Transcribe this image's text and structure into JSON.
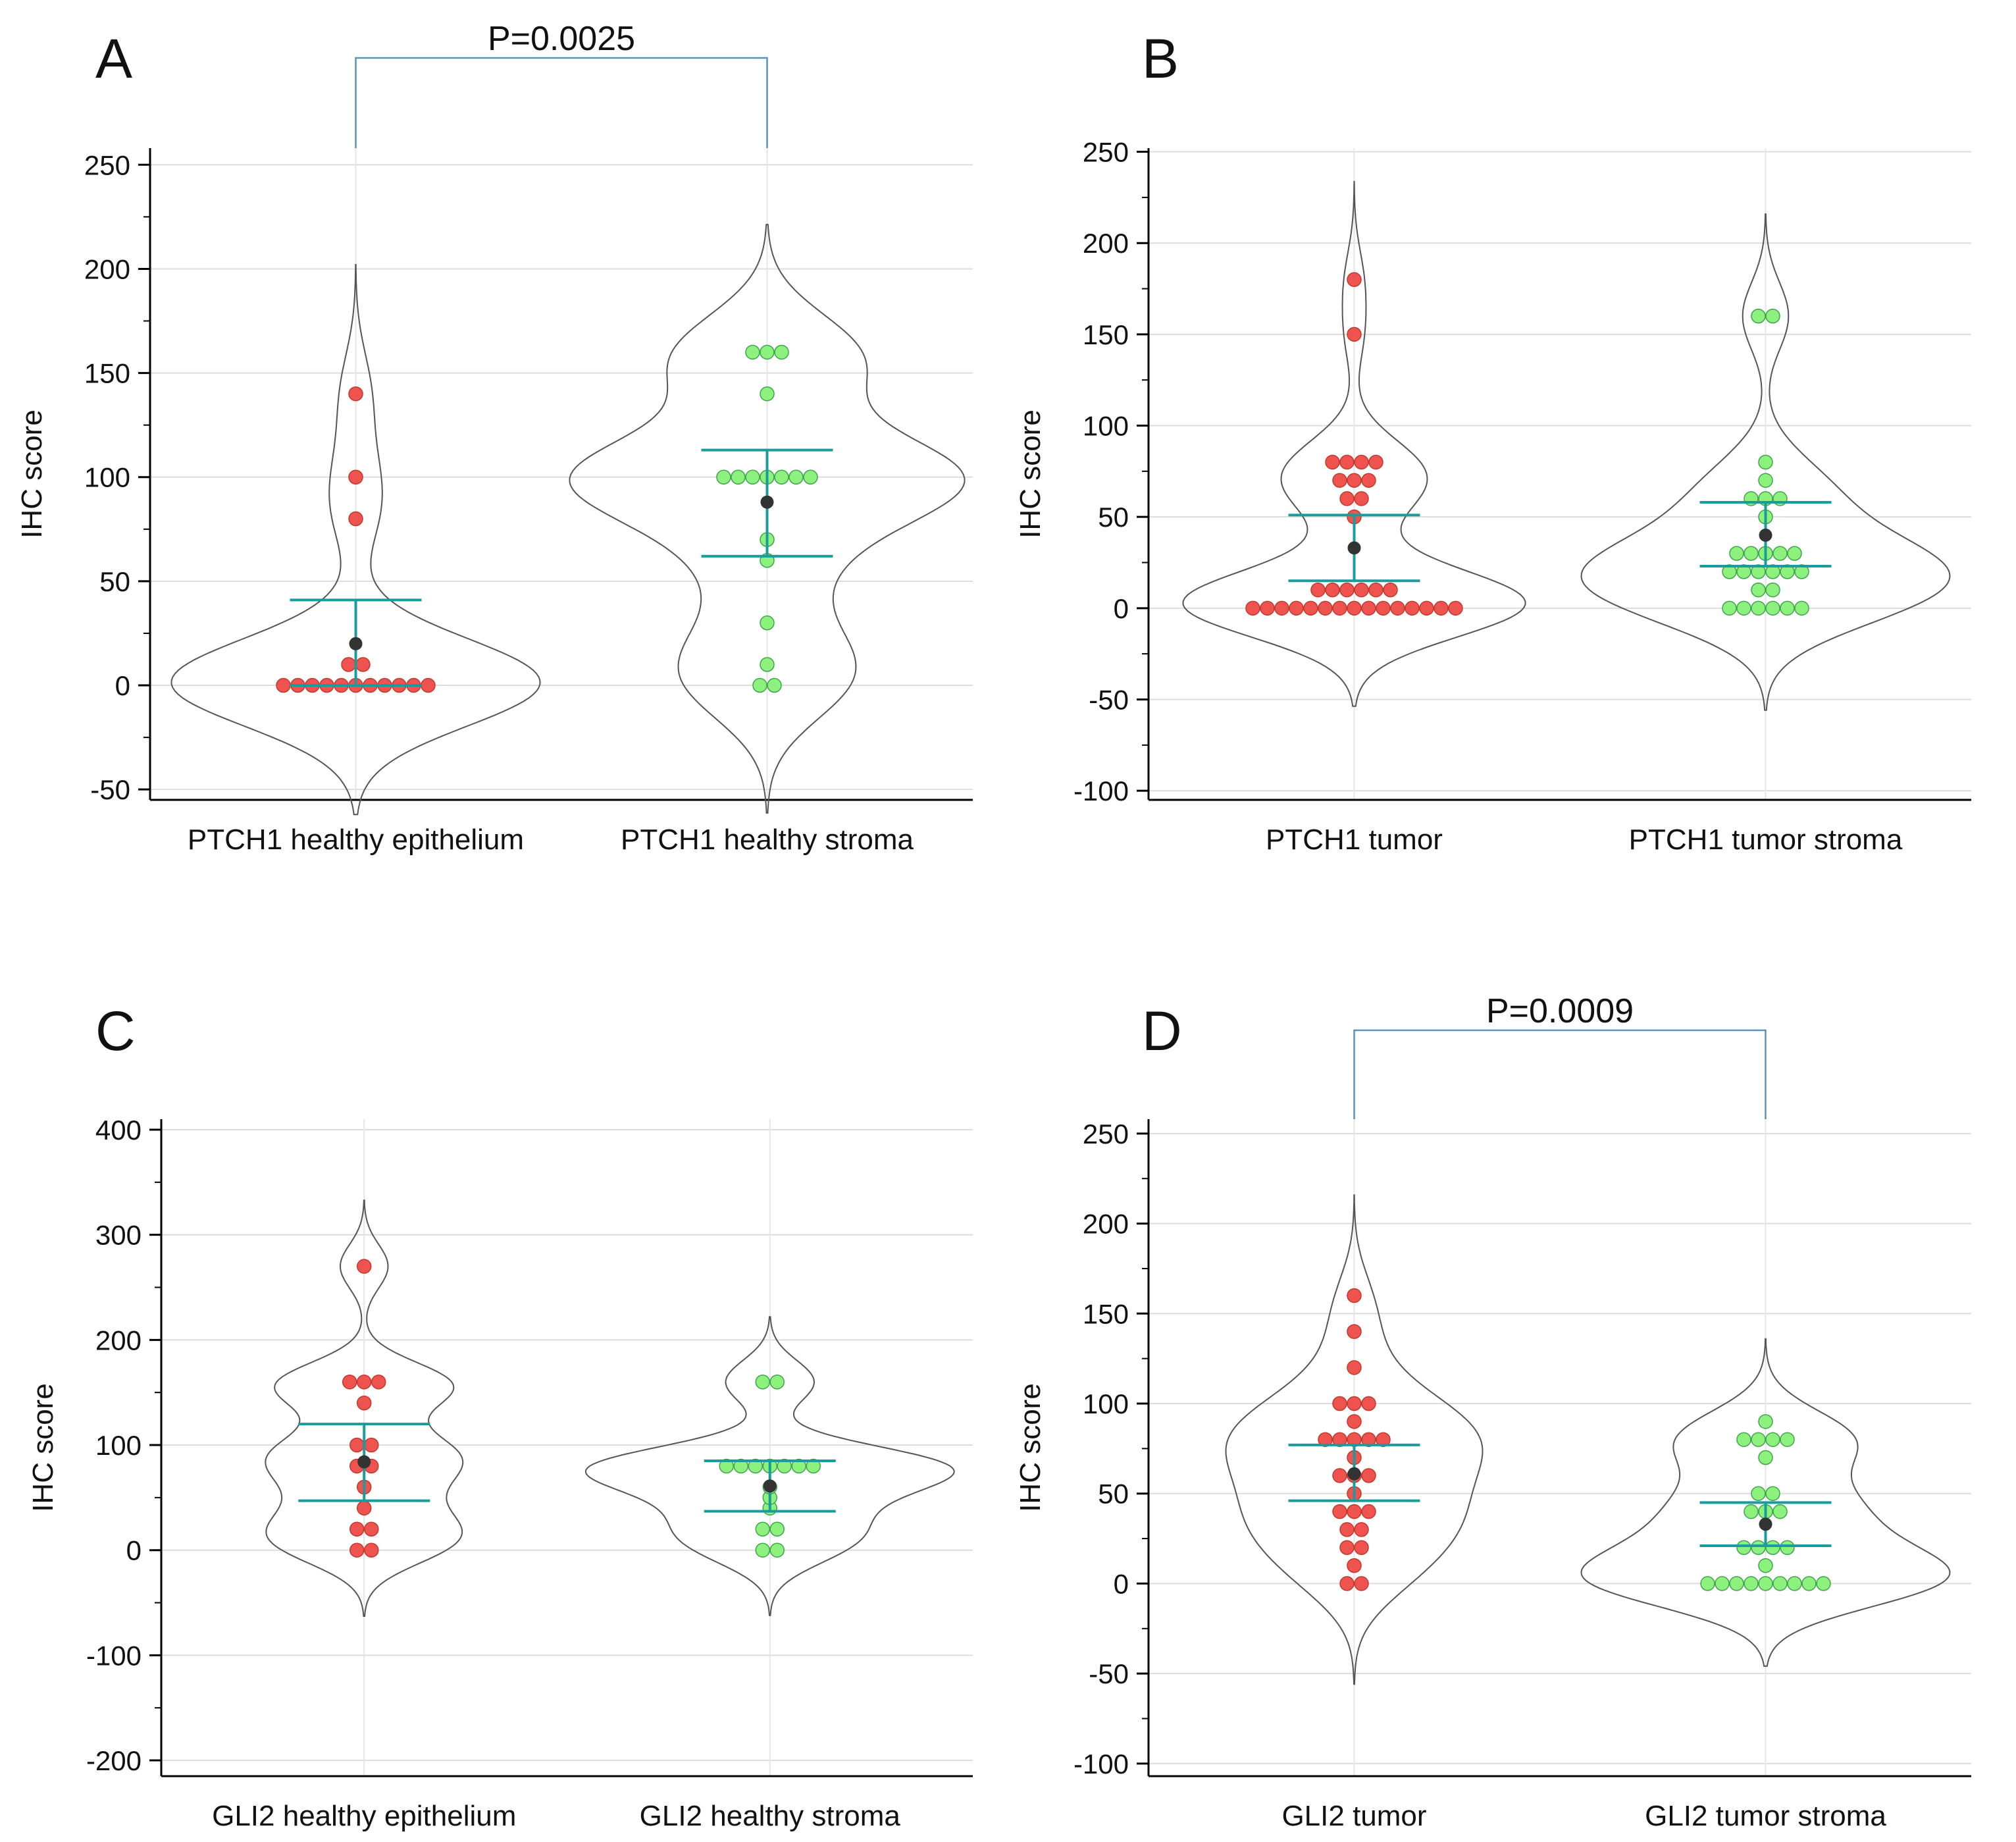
{
  "figure": {
    "ylabel": "IHC score",
    "colors": {
      "red": "#ef5350",
      "green": "#8cf27d",
      "teal": "#1a9c9c",
      "mean": "#333333",
      "violin": "#555555",
      "grid": "#dddddd",
      "sig": "#5a93b8"
    }
  },
  "chart_data": [
    {
      "type": "violin",
      "panel": "A",
      "ylabel": "IHC score",
      "ylim": [
        -55,
        258
      ],
      "yticks": [
        -50,
        0,
        50,
        100,
        150,
        200,
        250
      ],
      "categories": [
        "PTCH1 healthy epithelium",
        "PTCH1 healthy stroma"
      ],
      "significance": "P=0.0025",
      "series": [
        {
          "name": "PTCH1 healthy epithelium",
          "color": "red",
          "points": [
            140,
            100,
            80,
            10,
            10,
            0,
            0,
            0,
            0,
            0,
            0,
            0,
            0,
            0,
            0,
            0
          ],
          "mean": 20,
          "ci_low": 0,
          "ci_high": 41
        },
        {
          "name": "PTCH1 healthy stroma",
          "color": "green",
          "points": [
            160,
            160,
            160,
            140,
            100,
            100,
            100,
            100,
            100,
            100,
            100,
            70,
            60,
            30,
            10,
            0,
            0
          ],
          "mean": 88,
          "ci_low": 62,
          "ci_high": 113
        }
      ]
    },
    {
      "type": "violin",
      "panel": "B",
      "ylabel": "IHC score",
      "ylim": [
        -105,
        252
      ],
      "yticks": [
        -100,
        -50,
        0,
        50,
        100,
        150,
        200,
        250
      ],
      "categories": [
        "PTCH1 tumor",
        "PTCH1 tumor stroma"
      ],
      "significance": "",
      "series": [
        {
          "name": "PTCH1 tumor",
          "color": "red",
          "points": [
            180,
            150,
            80,
            80,
            80,
            80,
            70,
            70,
            70,
            60,
            60,
            50,
            10,
            10,
            10,
            10,
            10,
            10,
            0,
            0,
            0,
            0,
            0,
            0,
            0,
            0,
            0,
            0,
            0,
            0,
            0,
            0,
            0
          ],
          "mean": 33,
          "ci_low": 15,
          "ci_high": 51
        },
        {
          "name": "PTCH1 tumor stroma",
          "color": "green",
          "points": [
            160,
            160,
            80,
            70,
            60,
            60,
            60,
            50,
            30,
            30,
            30,
            30,
            30,
            20,
            20,
            20,
            20,
            20,
            20,
            10,
            10,
            0,
            0,
            0,
            0,
            0,
            0
          ],
          "mean": 40,
          "ci_low": 23,
          "ci_high": 58
        }
      ]
    },
    {
      "type": "violin",
      "panel": "C",
      "ylabel": "IHC score",
      "ylim": [
        -215,
        410
      ],
      "yticks": [
        -200,
        -100,
        0,
        100,
        200,
        300,
        400
      ],
      "categories": [
        "GLI2 healthy epithelium",
        "GLI2 healthy stroma"
      ],
      "significance": "",
      "series": [
        {
          "name": "GLI2 healthy epithelium",
          "color": "red",
          "points": [
            270,
            160,
            160,
            160,
            140,
            100,
            100,
            80,
            80,
            60,
            40,
            20,
            20,
            0,
            0
          ],
          "mean": 84,
          "ci_low": 47,
          "ci_high": 120
        },
        {
          "name": "GLI2 healthy stroma",
          "color": "green",
          "points": [
            160,
            160,
            80,
            80,
            80,
            80,
            80,
            80,
            80,
            60,
            50,
            40,
            20,
            20,
            0,
            0
          ],
          "mean": 61,
          "ci_low": 37,
          "ci_high": 85
        }
      ]
    },
    {
      "type": "violin",
      "panel": "D",
      "ylabel": "IHC score",
      "ylim": [
        -107,
        258
      ],
      "yticks": [
        -100,
        -50,
        0,
        50,
        100,
        150,
        200,
        250
      ],
      "categories": [
        "GLI2 tumor",
        "GLI2 tumor stroma"
      ],
      "significance": "P=0.0009",
      "series": [
        {
          "name": "GLI2 tumor",
          "color": "red",
          "points": [
            160,
            140,
            120,
            100,
            100,
            100,
            90,
            80,
            80,
            80,
            80,
            80,
            70,
            60,
            60,
            60,
            50,
            40,
            40,
            40,
            30,
            30,
            20,
            20,
            10,
            0,
            0
          ],
          "mean": 61,
          "ci_low": 46,
          "ci_high": 77
        },
        {
          "name": "GLI2 tumor stroma",
          "color": "green",
          "points": [
            90,
            80,
            80,
            80,
            80,
            70,
            50,
            50,
            40,
            40,
            40,
            20,
            20,
            20,
            20,
            10,
            0,
            0,
            0,
            0,
            0,
            0,
            0,
            0,
            0
          ],
          "mean": 33,
          "ci_low": 21,
          "ci_high": 45
        }
      ]
    }
  ]
}
